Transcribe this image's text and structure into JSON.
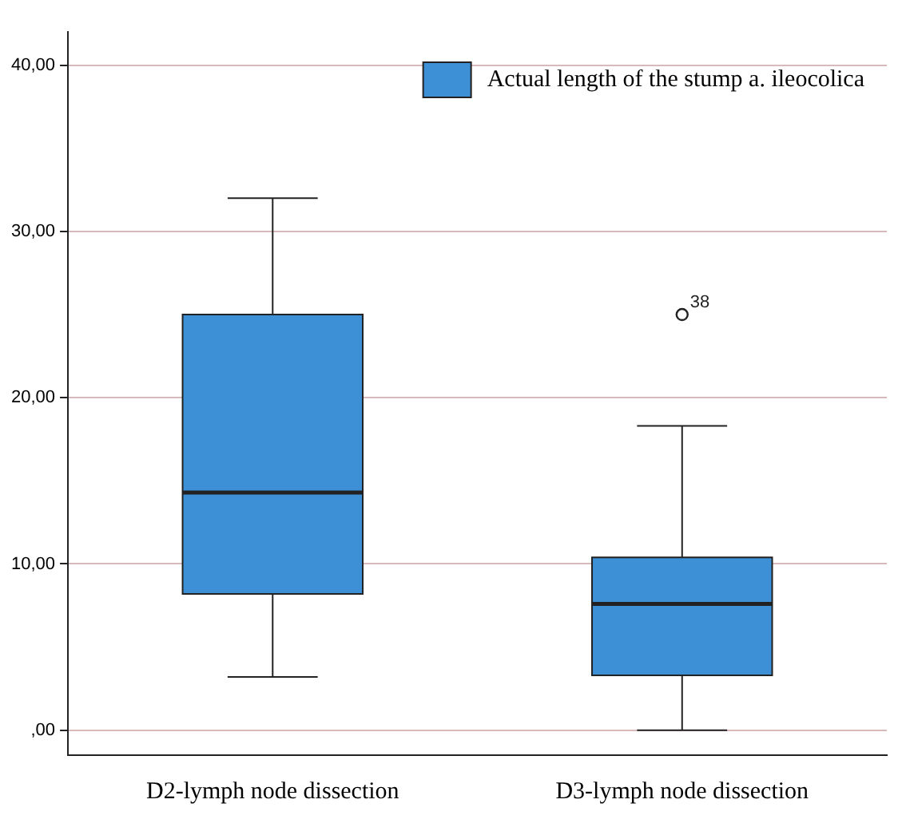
{
  "chart_data": {
    "type": "box",
    "categories": [
      "D2-lymph node dissection",
      "D3-lymph node dissection"
    ],
    "series": [
      {
        "name": "Actual length of the stump a. ileocolica",
        "color": "#3d8fd6",
        "boxes": [
          {
            "low": 3.2,
            "q1": 8.2,
            "median": 14.3,
            "q3": 25.0,
            "high": 32.0
          },
          {
            "low": 0.0,
            "q1": 3.3,
            "median": 7.6,
            "q3": 10.4,
            "high": 18.3,
            "outliers": [
              25.0
            ]
          }
        ]
      }
    ],
    "ylim": [
      -1.5,
      42
    ],
    "yticks": [
      {
        "value": 0,
        "label": ",00"
      },
      {
        "value": 10,
        "label": "10,00"
      },
      {
        "value": 20,
        "label": "20,00"
      },
      {
        "value": 30,
        "label": "30,00"
      },
      {
        "value": 40,
        "label": "40,00"
      }
    ],
    "grid": "y",
    "legend": "top right",
    "annotations": [
      "38"
    ]
  }
}
